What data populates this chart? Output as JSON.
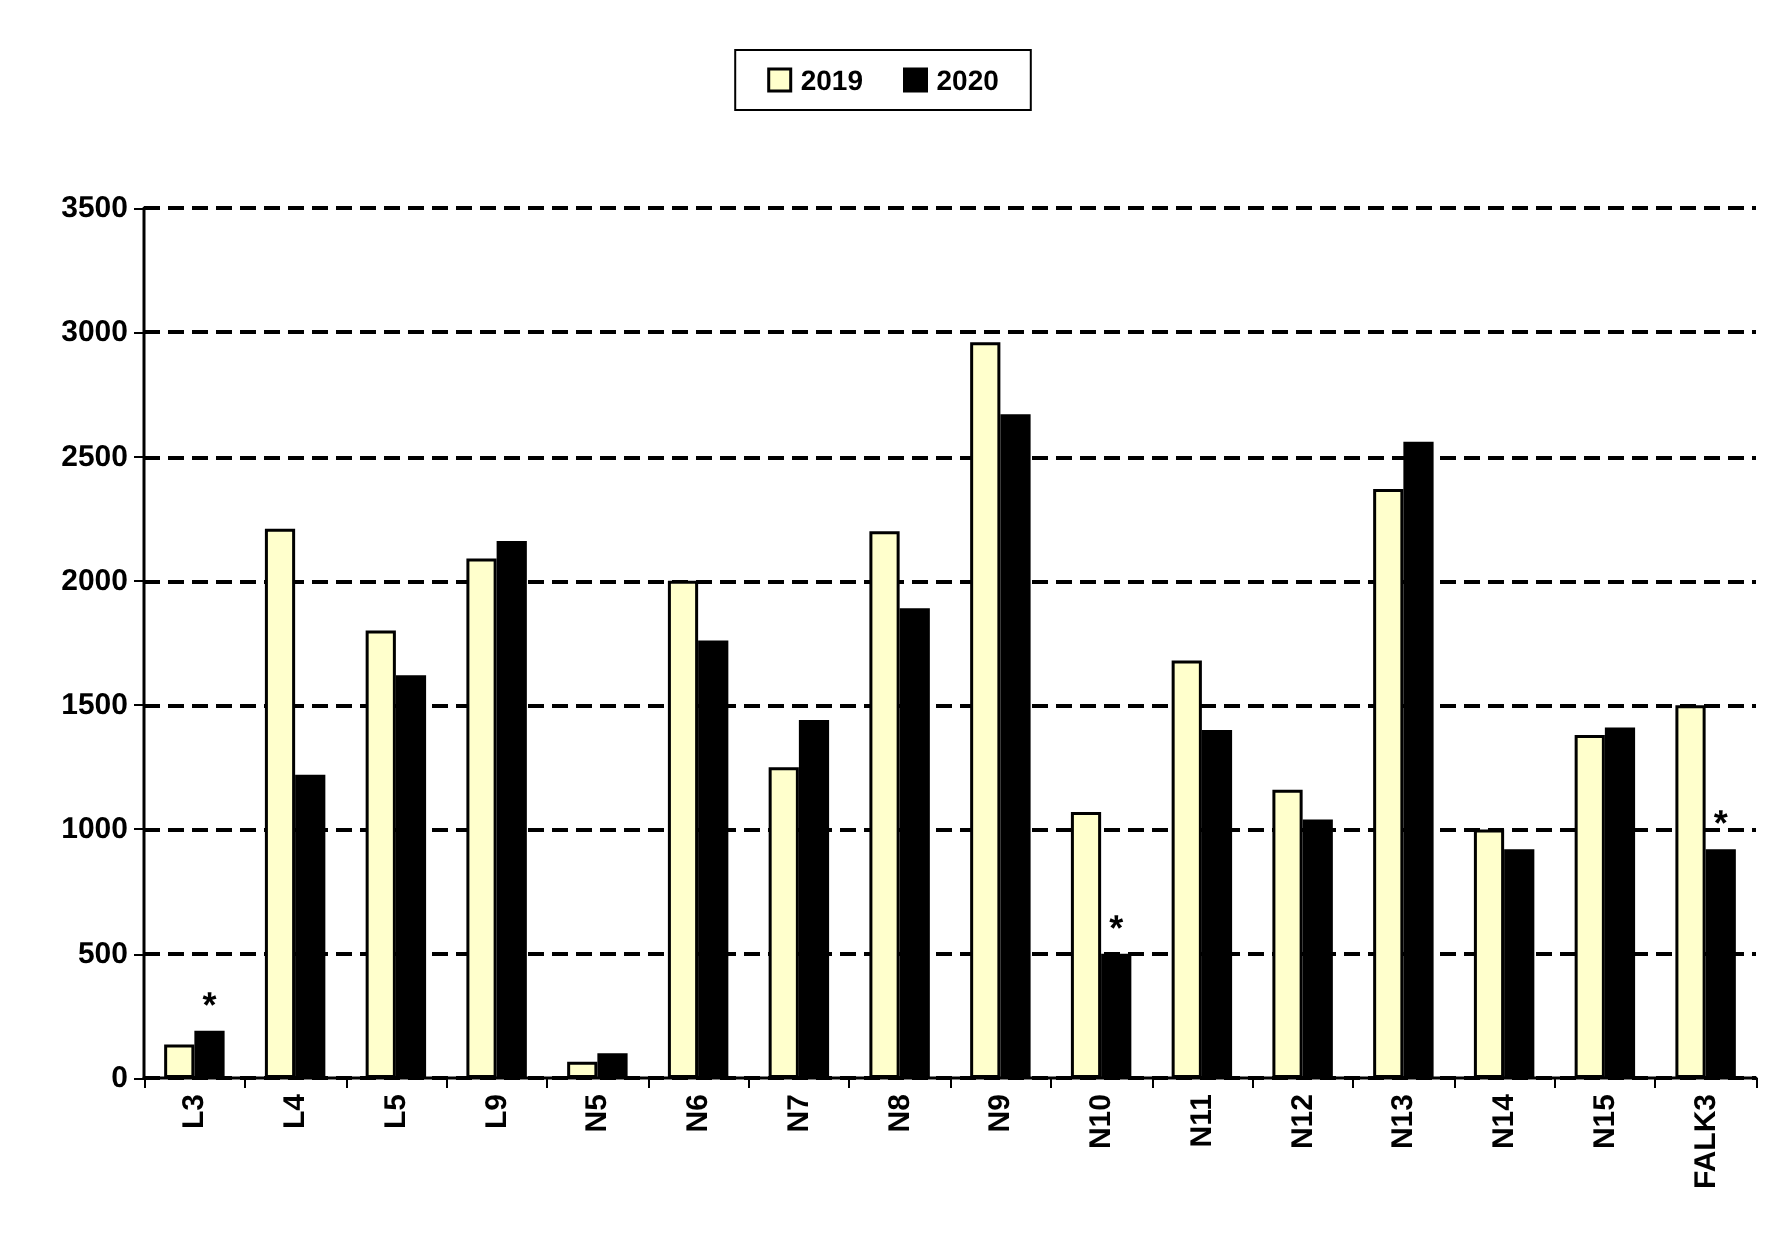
{
  "chart_data": {
    "type": "bar",
    "categories": [
      "L3",
      "L4",
      "L5",
      "L9",
      "N5",
      "N6",
      "N7",
      "N8",
      "N9",
      "N10",
      "N11",
      "N12",
      "N13",
      "N14",
      "N15",
      "FALK3"
    ],
    "series": [
      {
        "name": "2019",
        "color": "#ffffcc",
        "values": [
          135,
          2210,
          1800,
          2090,
          65,
          2000,
          1250,
          2200,
          2960,
          1070,
          1680,
          1160,
          2370,
          1000,
          1380,
          1500
        ]
      },
      {
        "name": "2020",
        "color": "#000000",
        "values": [
          190,
          1220,
          1620,
          2160,
          100,
          1760,
          1440,
          1890,
          2670,
          500,
          1400,
          1040,
          2560,
          920,
          1410,
          920
        ]
      }
    ],
    "ylim": [
      0,
      3500
    ],
    "yticks": [
      0,
      500,
      1000,
      1500,
      2000,
      2500,
      3000,
      3500
    ],
    "grid": "y",
    "legend": "top",
    "annotations": [
      {
        "text": "*",
        "x": "L3",
        "y": 190
      },
      {
        "text": "*",
        "x": "N10",
        "y": 500
      },
      {
        "text": "*",
        "x": "FALK3",
        "y": 920
      }
    ]
  }
}
